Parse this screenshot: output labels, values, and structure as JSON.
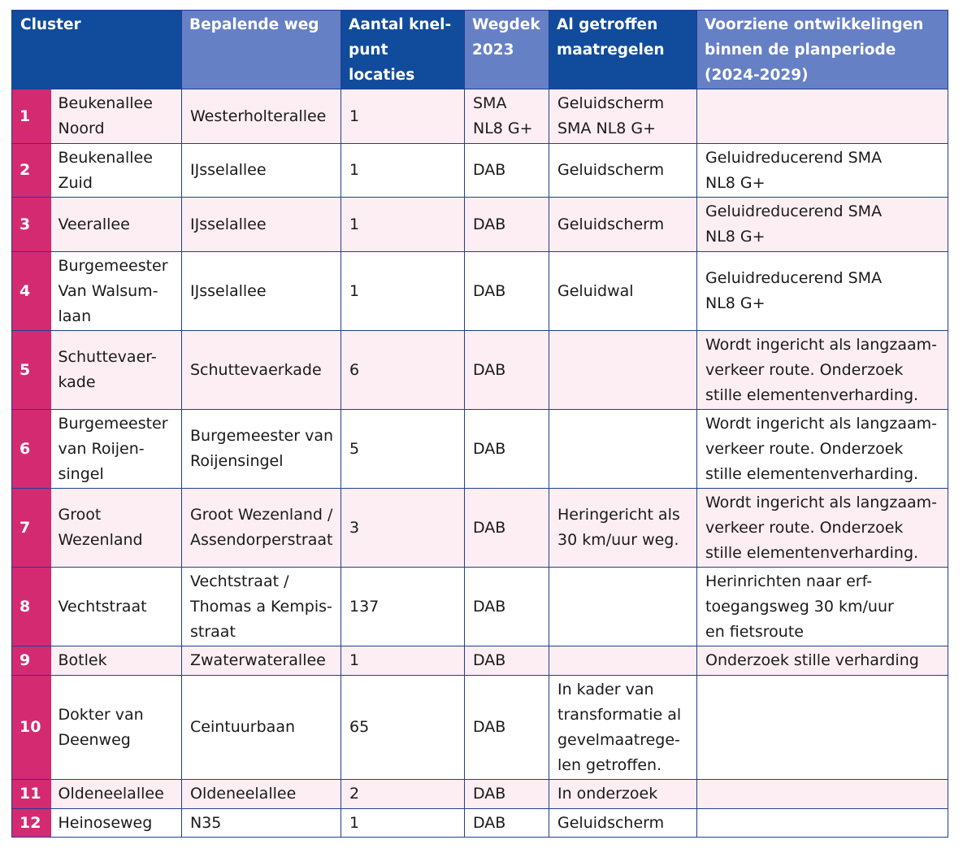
{
  "table": {
    "headers": {
      "cluster": "Cluster",
      "road": "Bepalende weg",
      "count": "Aantal knel-\npunt locaties",
      "surface": "Wegdek\n2023",
      "measures": "Al getroffen\nmaatregelen",
      "developments": "Voorziene ontwikkelingen\nbinnen de planperiode\n(2024-2029)"
    },
    "rows": [
      {
        "num": "1",
        "name": "Beukenallee\nNoord",
        "road": "Westerholterallee",
        "count": "1",
        "surface": "SMA\nNL8 G+",
        "measures": "Geluidscherm\nSMA NL8 G+",
        "developments": ""
      },
      {
        "num": "2",
        "name": "Beukenallee\nZuid",
        "road": "IJsselallee",
        "count": "1",
        "surface": "DAB",
        "measures": "Geluidscherm",
        "developments": "Geluidreducerend SMA\nNL8 G+"
      },
      {
        "num": "3",
        "name": "Veerallee",
        "road": "IJsselallee",
        "count": "1",
        "surface": "DAB",
        "measures": "Geluidscherm",
        "developments": "Geluidreducerend SMA\nNL8 G+"
      },
      {
        "num": "4",
        "name": "Burgemeester\nVan Walsum-\nlaan",
        "road": "IJsselallee",
        "count": "1",
        "surface": "DAB",
        "measures": "Geluidwal",
        "developments": "Geluidreducerend SMA\nNL8 G+"
      },
      {
        "num": "5",
        "name": "Schuttevaer-\nkade",
        "road": "Schuttevaerkade",
        "count": "6",
        "surface": "DAB",
        "measures": "",
        "developments": "Wordt ingericht als langzaam-\nverkeer route. Onderzoek\nstille elementenverharding."
      },
      {
        "num": "6",
        "name": "Burgemeester\nvan Roijen-\nsingel",
        "road": "Burgemeester van\nRoijensingel",
        "count": "5",
        "surface": "DAB",
        "measures": "",
        "developments": "Wordt ingericht als langzaam-\nverkeer route. Onderzoek\nstille elementenverharding."
      },
      {
        "num": "7",
        "name": "Groot\nWezenland",
        "road": "Groot Wezenland /\nAssendorperstraat",
        "count": "3",
        "surface": "DAB",
        "measures": "Heringericht als\n30 km/uur weg.",
        "developments": "Wordt ingericht als langzaam-\nverkeer route. Onderzoek\nstille elementenverharding."
      },
      {
        "num": "8",
        "name": "Vechtstraat",
        "road": "Vechtstraat /\nThomas a Kempis-\nstraat",
        "count": "137",
        "surface": "DAB",
        "measures": "",
        "developments": "Herinrichten naar erf-\ntoegangsweg 30 km/uur\nen fietsroute"
      },
      {
        "num": "9",
        "name": "Botlek",
        "road": "Zwaterwaterallee",
        "count": "1",
        "surface": "DAB",
        "measures": "",
        "developments": "Onderzoek stille verharding"
      },
      {
        "num": "10",
        "name": "Dokter van\nDeenweg",
        "road": "Ceintuurbaan",
        "count": "65",
        "surface": "DAB",
        "measures": "In kader van\ntransformatie al\ngevelmaatrege-\nlen getroffen.",
        "developments": ""
      },
      {
        "num": "11",
        "name": "Oldeneelallee",
        "road": "Oldeneelallee",
        "count": "2",
        "surface": "DAB",
        "measures": "In onderzoek",
        "developments": ""
      },
      {
        "num": "12",
        "name": "Heinoseweg",
        "road": "N35",
        "count": "1",
        "surface": "DAB",
        "measures": "Geluidscherm",
        "developments": ""
      }
    ]
  }
}
